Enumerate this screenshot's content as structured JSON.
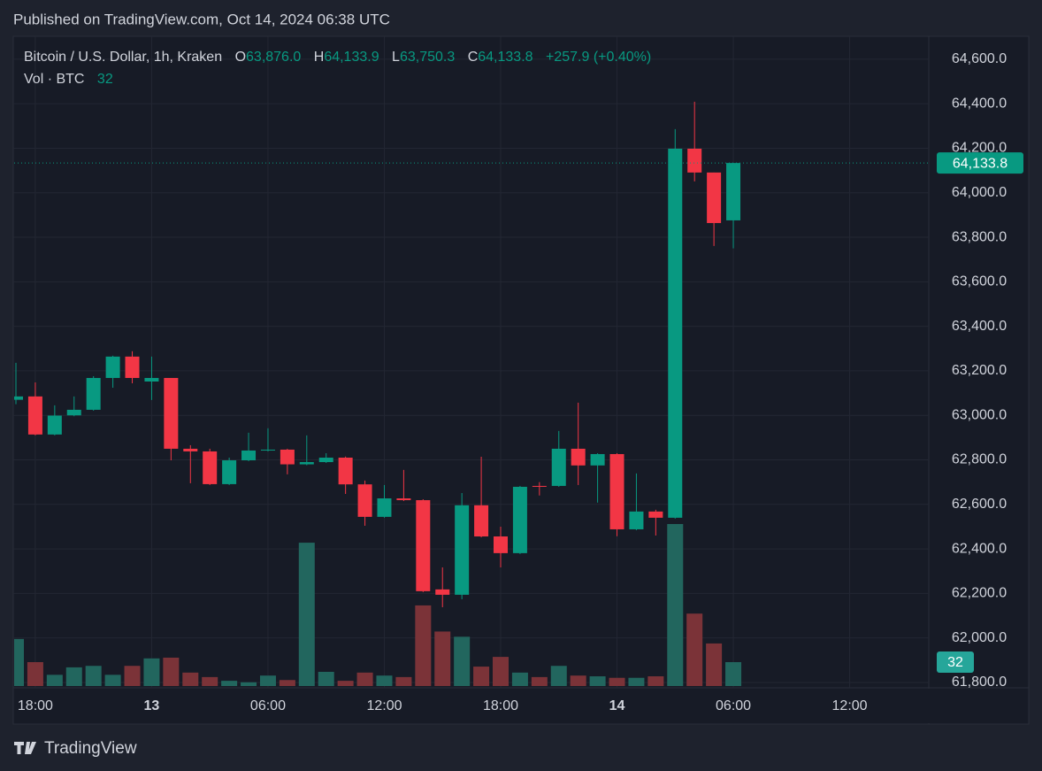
{
  "chart_data": {
    "type": "candlestick",
    "title": "Published on TradingView.com, Oct 14, 2024 06:38 UTC",
    "brand": "TradingView",
    "legend": {
      "symbol": "Bitcoin / U.S. Dollar, 1h, Kraken",
      "o_key": "O",
      "open": "63,876.0",
      "h_key": "H",
      "high": "64,133.9",
      "l_key": "L",
      "low": "63,750.3",
      "c_key": "C",
      "close": "64,133.8",
      "change": "+257.9 (+0.40%)",
      "volume_key": "Vol · BTC"
    },
    "categories": [
      null,
      "18:00",
      null,
      null,
      null,
      null,
      null,
      "13",
      null,
      null,
      null,
      null,
      null,
      "06:00",
      null,
      null,
      null,
      null,
      null,
      "12:00",
      null,
      null,
      null,
      null,
      null,
      "18:00",
      null,
      null,
      null,
      null,
      null,
      "14",
      null,
      null,
      null,
      null,
      null,
      "06:00",
      null,
      null,
      null,
      null,
      null,
      "12:00"
    ],
    "bold_categories": [
      "13",
      "14"
    ],
    "open": [
      63070,
      63085,
      62914,
      63000,
      63025,
      63168,
      63264,
      63152,
      63168,
      62850,
      62838,
      62691,
      62798,
      62842,
      62846,
      62780,
      62790,
      62810,
      62690,
      62544,
      62627,
      62619,
      62218,
      62194,
      62596,
      62456,
      62381,
      62683,
      62683,
      62850,
      62775,
      62826,
      62488,
      62568,
      62540,
      64198,
      64091,
      63876,
      null,
      null,
      null,
      null,
      null,
      null
    ],
    "high": [
      63236,
      63148,
      63045,
      63085,
      63176,
      63268,
      63288,
      63264,
      63168,
      62866,
      62850,
      62810,
      62922,
      62942,
      62850,
      62910,
      62830,
      62815,
      62707,
      62687,
      62755,
      62623,
      62317,
      62651,
      62814,
      62500,
      62683,
      62700,
      62930,
      63057,
      62830,
      62830,
      62739,
      62576,
      64286,
      64409,
      64091,
      64133.9,
      null,
      null,
      null,
      null,
      null,
      null
    ],
    "low": [
      63050,
      62910,
      62910,
      62996,
      63021,
      63124,
      63144,
      63069,
      62798,
      62695,
      62687,
      62687,
      62794,
      62838,
      62735,
      62776,
      62786,
      62647,
      62504,
      62540,
      62615,
      62206,
      62138,
      62174,
      62452,
      62317,
      62377,
      62640,
      62679,
      62687,
      62608,
      62457,
      62484,
      62460,
      62536,
      64051,
      63761,
      63750.3,
      null,
      null,
      null,
      null,
      null,
      null
    ],
    "close": [
      63085,
      62914,
      62999,
      63025,
      63168,
      63264,
      63168,
      63168,
      62850,
      62838,
      62691,
      62798,
      62842,
      62846,
      62780,
      62790,
      62810,
      62690,
      62544,
      62627,
      62619,
      62210,
      62194,
      62596,
      62456,
      62381,
      62679,
      62679,
      62850,
      62775,
      62826,
      62488,
      62568,
      62540,
      64198,
      64091,
      63864,
      64133.8,
      null,
      null,
      null,
      null,
      null,
      null
    ],
    "volume": [
      63,
      32,
      15,
      25,
      27,
      15,
      27,
      37,
      38,
      18,
      12,
      7,
      5,
      14,
      8,
      192,
      19,
      7,
      18,
      14,
      12,
      108,
      73,
      66,
      26,
      39,
      18,
      12,
      27,
      14,
      13,
      11,
      11,
      13,
      217,
      97,
      57,
      32,
      null,
      null,
      null,
      null,
      null,
      null
    ],
    "last_price": {
      "value": 64133.8,
      "label": "64,133.8"
    },
    "ylim": [
      61784,
      64699
    ],
    "yticks": [
      {
        "value": 61800,
        "label": "61,800.0"
      },
      {
        "value": 62000,
        "label": "62,000.0"
      },
      {
        "value": 62200,
        "label": "62,200.0"
      },
      {
        "value": 62400,
        "label": "62,400.0"
      },
      {
        "value": 62600,
        "label": "62,600.0"
      },
      {
        "value": 62800,
        "label": "62,800.0"
      },
      {
        "value": 63000,
        "label": "63,000.0"
      },
      {
        "value": 63200,
        "label": "63,200.0"
      },
      {
        "value": 63400,
        "label": "63,400.0"
      },
      {
        "value": 63600,
        "label": "63,600.0"
      },
      {
        "value": 63800,
        "label": "63,800.0"
      },
      {
        "value": 64000,
        "label": "64,000.0"
      },
      {
        "value": 64200,
        "label": "64,200.0"
      },
      {
        "value": 64400,
        "label": "64,400.0"
      },
      {
        "value": 64600,
        "label": "64,600.0"
      }
    ],
    "grid": true,
    "up_color": "#089981",
    "down_color": "#f23645",
    "volume_up_color": "#22665e",
    "volume_down_color": "#7b3338"
  }
}
